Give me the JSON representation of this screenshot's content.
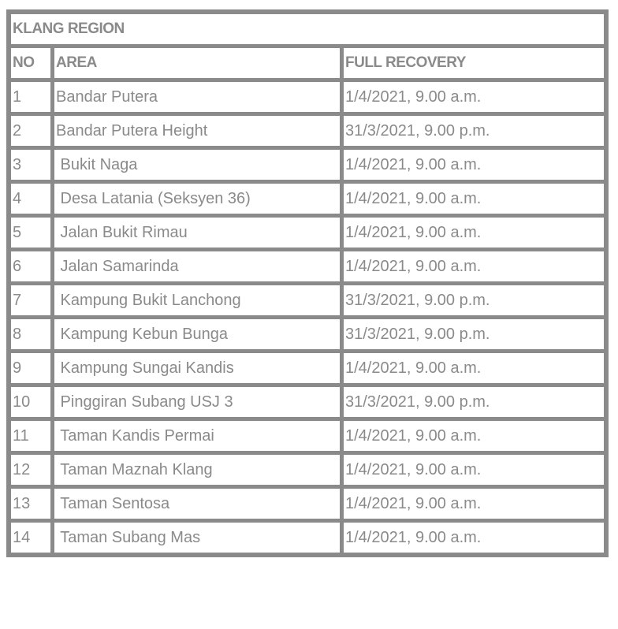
{
  "table": {
    "title": "KLANG REGION",
    "headers": [
      "NO",
      "AREA",
      "FULL RECOVERY"
    ],
    "rows": [
      [
        "1",
        "Bandar Putera",
        "1/4/2021, 9.00 a.m."
      ],
      [
        "2",
        "Bandar Putera Height",
        "31/3/2021, 9.00 p.m."
      ],
      [
        "3",
        " Bukit Naga",
        "1/4/2021, 9.00 a.m."
      ],
      [
        "4",
        " Desa Latania (Seksyen 36)",
        "1/4/2021, 9.00 a.m."
      ],
      [
        "5",
        " Jalan Bukit Rimau",
        "1/4/2021, 9.00 a.m."
      ],
      [
        "6",
        " Jalan Samarinda",
        "1/4/2021, 9.00 a.m."
      ],
      [
        "7",
        " Kampung Bukit Lanchong",
        "31/3/2021, 9.00 p.m."
      ],
      [
        "8",
        " Kampung Kebun Bunga",
        "31/3/2021, 9.00 p.m."
      ],
      [
        "9",
        " Kampung Sungai Kandis",
        "1/4/2021, 9.00 a.m."
      ],
      [
        "10",
        " Pinggiran Subang USJ 3",
        "31/3/2021, 9.00 p.m."
      ],
      [
        "11",
        " Taman Kandis Permai",
        "1/4/2021, 9.00 a.m."
      ],
      [
        "12",
        " Taman Maznah Klang",
        "1/4/2021, 9.00 a.m."
      ],
      [
        "13",
        " Taman Sentosa",
        "1/4/2021, 9.00 a.m."
      ],
      [
        "14",
        " Taman Subang Mas",
        "1/4/2021, 9.00 a.m."
      ]
    ]
  },
  "colors": {
    "border": "#8a8a8a",
    "text": "#8a8a8a"
  }
}
